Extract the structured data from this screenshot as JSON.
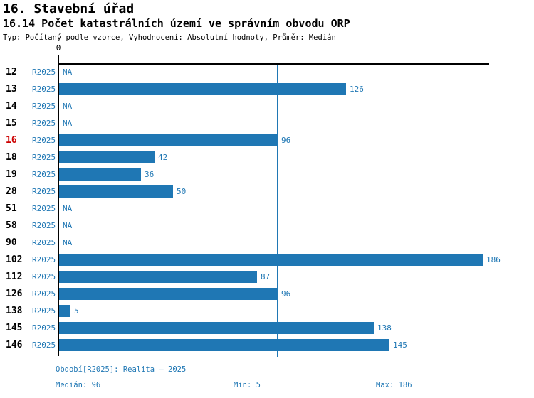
{
  "header": {
    "title_line1": "16. Stavební úřad",
    "title_line2": "16.14 Počet katastrálních území ve správním obvodu ORP",
    "subtitle": "Typ: Počítaný podle vzorce, Vyhodnocení: Absolutní hodnoty, Průměr: Medián"
  },
  "chart_data": {
    "type": "bar",
    "orientation": "horizontal",
    "title": "16.14 Počet katastrálních území ve správním obvodu ORP",
    "series_label": "R2025",
    "na_label": "NA",
    "axis_zero_label": "0",
    "xlim": [
      0,
      189
    ],
    "grid": false,
    "median_value": 96,
    "highlighted_category": "16",
    "rows": [
      {
        "category": "12",
        "value": null
      },
      {
        "category": "13",
        "value": 126
      },
      {
        "category": "14",
        "value": null
      },
      {
        "category": "15",
        "value": null
      },
      {
        "category": "16",
        "value": 96
      },
      {
        "category": "18",
        "value": 42
      },
      {
        "category": "19",
        "value": 36
      },
      {
        "category": "28",
        "value": 50
      },
      {
        "category": "51",
        "value": null
      },
      {
        "category": "58",
        "value": null
      },
      {
        "category": "90",
        "value": null
      },
      {
        "category": "102",
        "value": 186
      },
      {
        "category": "112",
        "value": 87
      },
      {
        "category": "126",
        "value": 96
      },
      {
        "category": "138",
        "value": 5
      },
      {
        "category": "145",
        "value": 138
      },
      {
        "category": "146",
        "value": 145
      }
    ]
  },
  "footer": {
    "period": "Období[R2025]: Realita – 2025",
    "median": "Medián: 96",
    "min": "Min: 5",
    "max": "Max: 186"
  },
  "colors": {
    "bar": "#1f77b4",
    "text_blue": "#1f77b4",
    "highlight_red": "#cc0000",
    "axis_black": "#000000"
  }
}
